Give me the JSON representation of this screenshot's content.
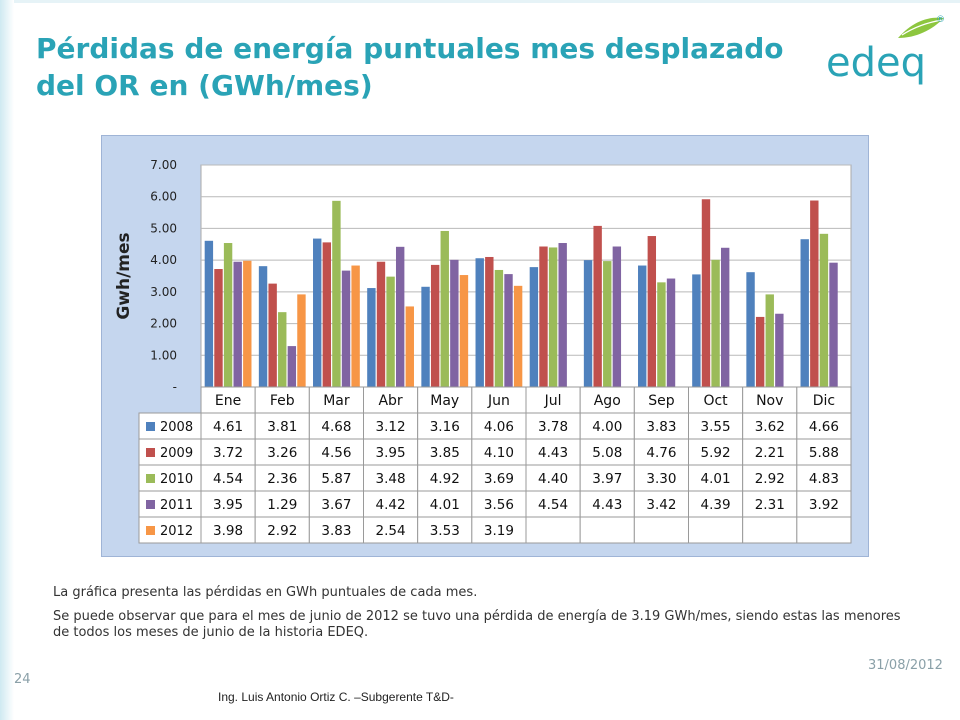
{
  "slide": {
    "title": "Pérdidas de energía puntuales mes desplazado del OR en  (GWh/mes)",
    "logo_text": "edeq",
    "logo_mark": "®",
    "description": [
      "La gráfica presenta las pérdidas en GWh puntuales de cada mes.",
      "Se puede observar que para el mes de junio de 2012 se tuvo una pérdida de energía de 3.19 GWh/mes, siendo estas las menores de todos los meses de junio de la historia EDEQ."
    ],
    "date": "31/08/2012",
    "page_number": "24",
    "author": "Ing. Luis Antonio Ortiz C. –Subgerente T&D-"
  },
  "colors": {
    "title": "#2aa3b6",
    "logo": "#2aa3b6",
    "leaf": "#8dc63f",
    "panel": "#c5d6ee",
    "plot": "#ffffff",
    "series": [
      "#4f81bd",
      "#c0504d",
      "#9bbb59",
      "#8064a2",
      "#f79646"
    ]
  },
  "chart_data": {
    "type": "bar",
    "title": "",
    "xlabel": "",
    "ylabel": "Gwh/mes",
    "ylim": [
      0,
      7
    ],
    "yticks": [
      "-",
      "1.00",
      "2.00",
      "3.00",
      "4.00",
      "5.00",
      "6.00",
      "7.00"
    ],
    "grid": true,
    "legend": "table-left",
    "categories": [
      "Ene",
      "Feb",
      "Mar",
      "Abr",
      "May",
      "Jun",
      "Jul",
      "Ago",
      "Sep",
      "Oct",
      "Nov",
      "Dic"
    ],
    "series": [
      {
        "name": "2008",
        "values": [
          4.61,
          3.81,
          4.68,
          3.12,
          3.16,
          4.06,
          3.78,
          4.0,
          3.83,
          3.55,
          3.62,
          4.66
        ]
      },
      {
        "name": "2009",
        "values": [
          3.72,
          3.26,
          4.56,
          3.95,
          3.85,
          4.1,
          4.43,
          5.08,
          4.76,
          5.92,
          2.21,
          5.88
        ]
      },
      {
        "name": "2010",
        "values": [
          4.54,
          2.36,
          5.87,
          3.48,
          4.92,
          3.69,
          4.4,
          3.97,
          3.3,
          4.01,
          2.92,
          4.83
        ]
      },
      {
        "name": "2011",
        "values": [
          3.95,
          1.29,
          3.67,
          4.42,
          4.01,
          3.56,
          4.54,
          4.43,
          3.42,
          4.39,
          2.31,
          3.92
        ]
      },
      {
        "name": "2012",
        "values": [
          3.98,
          2.92,
          3.83,
          2.54,
          3.53,
          3.19,
          null,
          null,
          null,
          null,
          null,
          null
        ]
      }
    ]
  }
}
